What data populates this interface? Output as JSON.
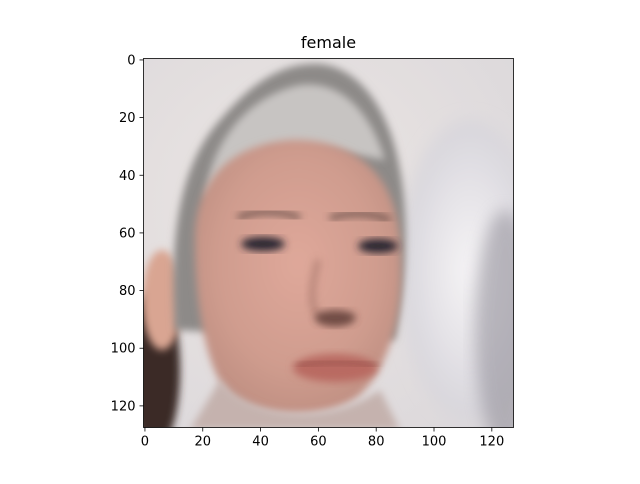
{
  "chart_data": {
    "type": "heatmap",
    "title": "female",
    "xlabel": "",
    "ylabel": "",
    "image_size": [
      128,
      128
    ],
    "xlim": [
      0,
      128
    ],
    "ylim": [
      128,
      0
    ],
    "x_ticks": [
      0,
      20,
      40,
      60,
      80,
      100,
      120
    ],
    "y_ticks": [
      0,
      20,
      40,
      60,
      80,
      100,
      120
    ],
    "x_tick_labels": [
      "0",
      "20",
      "40",
      "60",
      "80",
      "100",
      "120"
    ],
    "y_tick_labels": [
      "0",
      "20",
      "40",
      "60",
      "80",
      "100",
      "120"
    ],
    "image_description": "blurry face portrait"
  }
}
